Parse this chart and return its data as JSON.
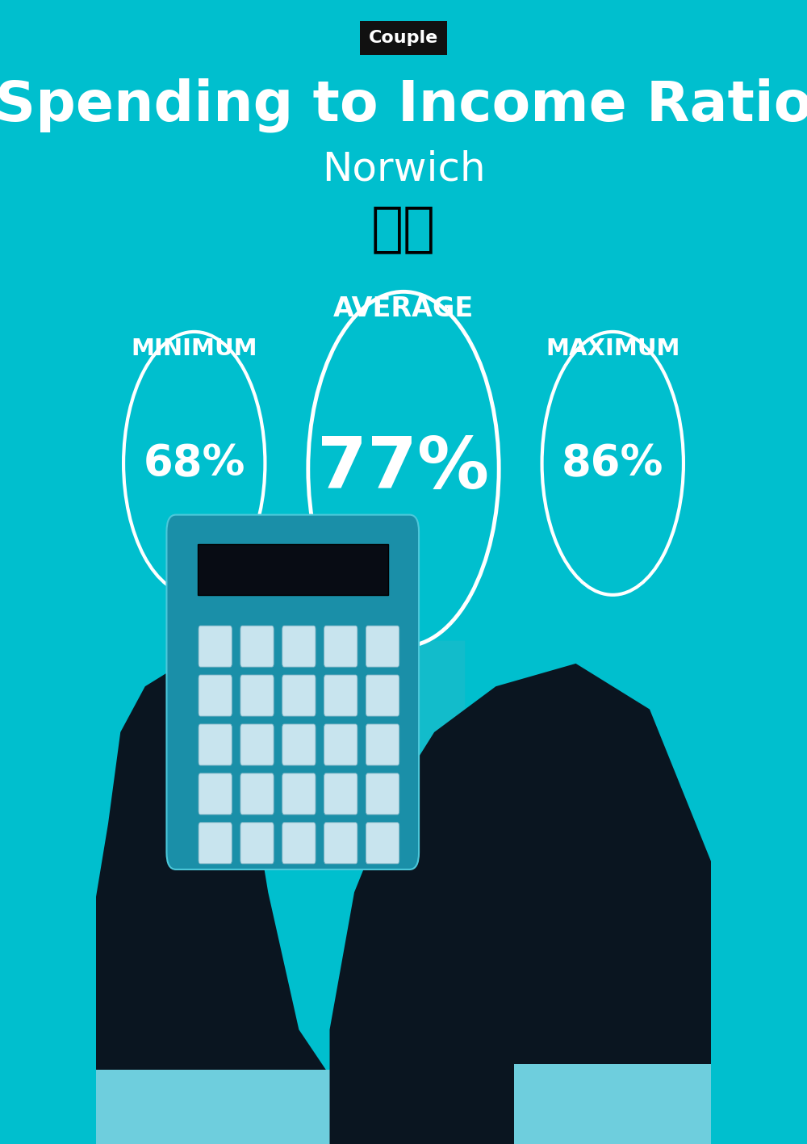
{
  "bg_color": "#00BFCE",
  "title": "Spending to Income Ratio",
  "subtitle": "Norwich",
  "label_tag": "Couple",
  "tag_bg": "#111111",
  "title_color": "#ffffff",
  "subtitle_color": "#ffffff",
  "text_color": "#ffffff",
  "circle_color": "#ffffff",
  "min_label": "MINIMUM",
  "avg_label": "AVERAGE",
  "max_label": "MAXIMUM",
  "min_value": "68%",
  "avg_value": "77%",
  "max_value": "86%",
  "figwidth": 10.0,
  "figheight": 14.17,
  "dpi": 100,
  "title_fontsize": 50,
  "subtitle_fontsize": 36,
  "tag_fontsize": 16,
  "avg_fontsize": 64,
  "min_max_fontsize": 38,
  "label_fontsize": 21,
  "avg_label_fontsize": 24,
  "flag_fontsize": 48,
  "teal_light": "#29BAC8",
  "teal_mid": "#1EA8B8",
  "hand_color": "#0A1520",
  "cuff_color": "#6ECEDD",
  "calc_body": "#1A8FA8",
  "calc_screen": "#080C14",
  "calc_btn": "#C8E4EE",
  "money_bag_color": "#3AABBA",
  "dollar_color": "#D4C070"
}
